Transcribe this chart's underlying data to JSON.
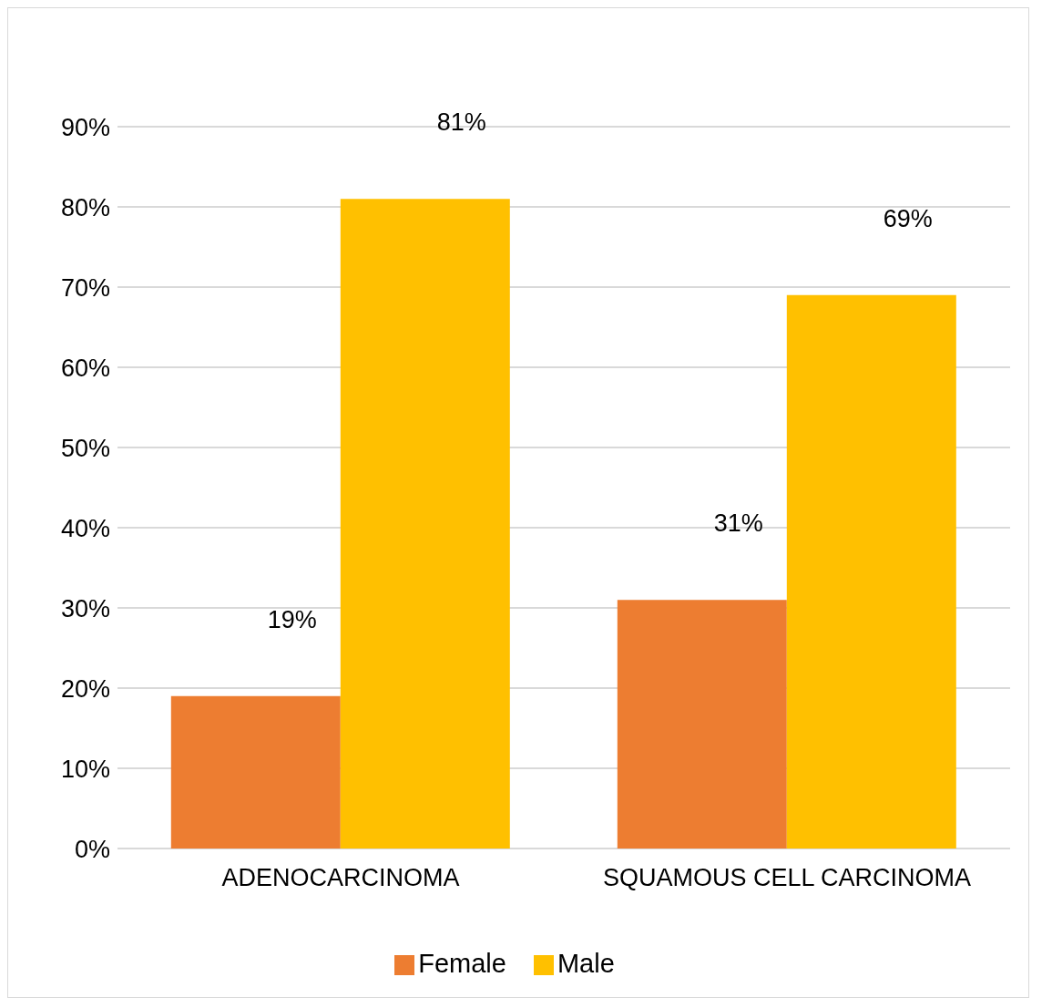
{
  "chart_data": {
    "type": "bar",
    "categories": [
      "ADENOCARCINOMA",
      "SQUAMOUS CELL CARCINOMA"
    ],
    "series": [
      {
        "name": "Female",
        "color": "#ed7d31",
        "values": [
          19,
          31
        ],
        "value_labels": [
          "19%",
          "31%"
        ]
      },
      {
        "name": "Male",
        "color": "#ffc000",
        "values": [
          81,
          69
        ],
        "value_labels": [
          "81%",
          "69%"
        ]
      }
    ],
    "ylim": [
      0,
      90
    ],
    "yticks": [
      {
        "value": 0,
        "label": "0%"
      },
      {
        "value": 10,
        "label": "10%"
      },
      {
        "value": 20,
        "label": "20%"
      },
      {
        "value": 30,
        "label": "30%"
      },
      {
        "value": 40,
        "label": "40%"
      },
      {
        "value": 50,
        "label": "50%"
      },
      {
        "value": 60,
        "label": "60%"
      },
      {
        "value": 70,
        "label": "70%"
      },
      {
        "value": 80,
        "label": "80%"
      },
      {
        "value": 90,
        "label": "90%"
      }
    ],
    "grid": "y",
    "legend": "bottom"
  }
}
